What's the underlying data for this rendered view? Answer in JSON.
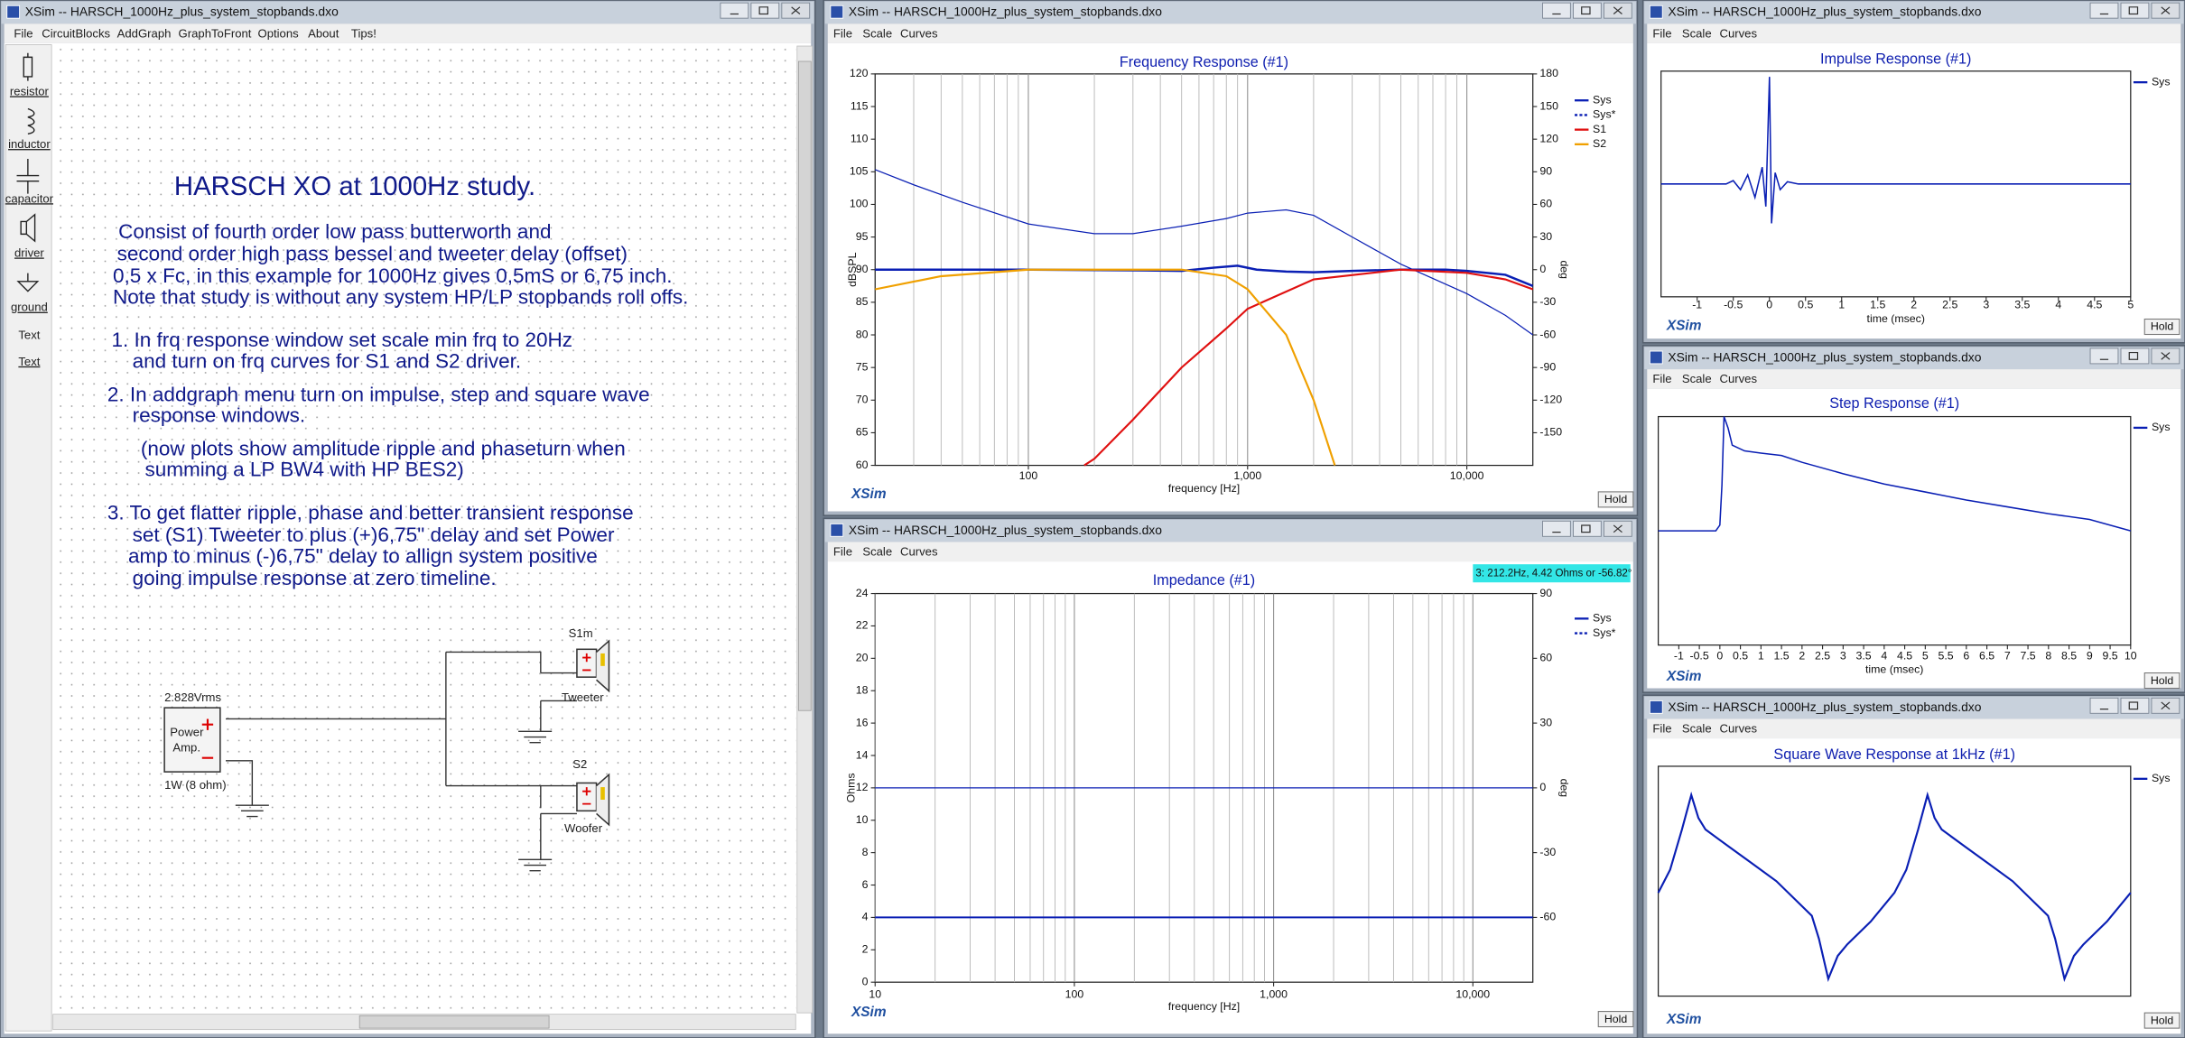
{
  "left_window": {
    "title": "XSim -- HARSCH_1000Hz_plus_system_stopbands.dxo",
    "menu": [
      "File",
      "CircuitBlocks",
      "AddGraph",
      "GraphToFront",
      "Options",
      "About",
      "Tips!"
    ],
    "palette": [
      "resistor",
      "inductor",
      "capacitor",
      "driver",
      "ground",
      "Text",
      "Text"
    ],
    "heading": "HARSCH XO at 1000Hz study.",
    "notes": [
      "Consist of fourth order low pass butterworth and",
      "second order high pass bessel and tweeter delay (offset)",
      "0,5 x Fc, in this example for 1000Hz gives 0,5mS or 6,75 inch.",
      "Note that study is without any system HP/LP stopbands roll offs.",
      "1. In frq response window set scale min frq to 20Hz",
      "and turn on frq curves for S1 and S2 driver.",
      "2. In addgraph menu turn on impulse, step and square wave",
      "response windows.",
      "(now plots show amplitude ripple and phaseturn when",
      "summing a LP BW4 with HP BES2)",
      "3. To get flatter ripple, phase and better transient response",
      "set (S1) Tweeter to plus (+)6,75\" delay and set Power",
      "amp to minus (-)6,75\" delay to allign system positive",
      "going impulse response at zero timeline."
    ],
    "circuit": {
      "source_voltage": "2.828Vrms",
      "source_name": [
        "Power",
        "Amp."
      ],
      "source_power": "1W (8 ohm)",
      "driver1_name": "S1m",
      "driver1_label": "Tweeter",
      "driver2_name": "S2",
      "driver2_label": "Woofer"
    }
  },
  "graphs": [
    {
      "type": "line",
      "window_title": "XSim -- HARSCH_1000Hz_plus_system_stopbands.dxo",
      "menu": [
        "File",
        "Scale",
        "Curves"
      ],
      "title": "Frequency Response (#1)",
      "xlabel": "frequency [Hz]",
      "ylabel": "dBSPL",
      "y2label": "deg",
      "xscale": "log",
      "grid": "x",
      "xlim": [
        20,
        20000
      ],
      "ylim": [
        60,
        120
      ],
      "y2lim": [
        -180,
        180
      ],
      "xticks": [
        100,
        {
          "value": 1000,
          "label": "1,000"
        },
        {
          "value": 10000,
          "label": "10,000"
        }
      ],
      "yticks": [
        60,
        65,
        70,
        75,
        80,
        85,
        90,
        95,
        100,
        105,
        110,
        115,
        120
      ],
      "y2ticks": [
        -150,
        -120,
        -90,
        -60,
        -30,
        0,
        30,
        60,
        90,
        120,
        150,
        180
      ],
      "series": [
        {
          "name": "Sys",
          "color": "#0a1fb4",
          "width": 1.6,
          "x": [
            20,
            100,
            300,
            500,
            700,
            900,
            1100,
            1500,
            2000,
            3000,
            5000,
            8000,
            10000,
            15000,
            20000
          ],
          "values": [
            90,
            90,
            89.9,
            89.8,
            90.3,
            90.6,
            90,
            89.7,
            89.6,
            89.8,
            90,
            90,
            89.8,
            89.2,
            87.5
          ],
          "phase_x": [
            20,
            30,
            50,
            100,
            200,
            300,
            500,
            800,
            1000,
            1500,
            2000,
            3000,
            5000,
            10000,
            15000,
            20000
          ],
          "phase": [
            92,
            78,
            62,
            42,
            33,
            33,
            40,
            47,
            52,
            55,
            50,
            30,
            5,
            -22,
            -42,
            -60
          ]
        },
        {
          "name": "Sys*",
          "color": "#0a1fb4",
          "dash": true,
          "x": [],
          "values": []
        },
        {
          "name": "S1",
          "color": "#e01010",
          "width": 1.4,
          "x": [
            180,
            200,
            300,
            500,
            800,
            1000,
            2000,
            5000,
            10000,
            15000,
            20000
          ],
          "values": [
            60,
            61,
            67,
            75,
            81,
            84,
            88.5,
            90,
            89.5,
            88.5,
            87
          ]
        },
        {
          "name": "S2",
          "color": "#f0a000",
          "width": 1.4,
          "x": [
            20,
            40,
            100,
            500,
            800,
            1000,
            1500,
            2000,
            2500
          ],
          "values": [
            87,
            89,
            90,
            90,
            89,
            87,
            80,
            70,
            60
          ]
        }
      ],
      "watermark": "XSim",
      "button": "Hold"
    },
    {
      "type": "line",
      "window_title": "XSim -- HARSCH_1000Hz_plus_system_stopbands.dxo",
      "menu": [
        "File",
        "Scale",
        "Curves"
      ],
      "title": "Impedance (#1)",
      "xlabel": "frequency [Hz]",
      "ylabel": "Ohms",
      "y2label": "deg",
      "xscale": "log",
      "grid": "x",
      "xlim": [
        10,
        20000
      ],
      "ylim": [
        0,
        24
      ],
      "y2lim": [
        -90,
        90
      ],
      "xticks": [
        10,
        100,
        {
          "value": 1000,
          "label": "1,000"
        },
        {
          "value": 10000,
          "label": "10,000"
        }
      ],
      "yticks": [
        0,
        2,
        4,
        6,
        8,
        10,
        12,
        14,
        16,
        18,
        20,
        22,
        24
      ],
      "y2ticks": [
        -60,
        -30,
        0,
        30,
        60,
        90
      ],
      "series": [
        {
          "name": "Sys",
          "color": "#0a1fb4",
          "width": 1.3,
          "x": [
            10,
            20000
          ],
          "values": [
            4,
            4
          ],
          "phase_x": [
            10,
            20000
          ],
          "phase": [
            0,
            0
          ]
        },
        {
          "name": "Sys*",
          "color": "#0a1fb4",
          "dash": true,
          "x": [],
          "values": []
        }
      ],
      "readout": "3: 212.2Hz, 4.42 Ohms or -56.82°",
      "watermark": "XSim",
      "button": "Hold"
    },
    {
      "type": "line",
      "window_title": "XSim -- HARSCH_1000Hz_plus_system_stopbands.dxo",
      "menu": [
        "File",
        "Scale",
        "Curves"
      ],
      "title": "Impulse Response (#1)",
      "xlabel": "time (msec)",
      "xscale": "linear",
      "xlim": [
        -1.5,
        5
      ],
      "ylim": [
        -1,
        1
      ],
      "xticks": [
        -1,
        -0.5,
        0,
        0.5,
        1,
        1.5,
        2,
        2.5,
        3,
        3.5,
        4,
        4.5,
        5
      ],
      "series": [
        {
          "name": "Sys",
          "color": "#0a1fb4",
          "width": 1,
          "x": [
            -1.5,
            -0.6,
            -0.5,
            -0.4,
            -0.3,
            -0.2,
            -0.1,
            -0.05,
            0,
            0.03,
            0.08,
            0.15,
            0.25,
            0.4,
            5
          ],
          "values": [
            0,
            0,
            0.03,
            -0.05,
            0.08,
            -0.12,
            0.15,
            -0.2,
            0.95,
            -0.35,
            0.1,
            -0.05,
            0.02,
            0,
            0
          ]
        }
      ],
      "watermark": "XSim",
      "button": "Hold"
    },
    {
      "type": "line",
      "window_title": "XSim -- HARSCH_1000Hz_plus_system_stopbands.dxo",
      "menu": [
        "File",
        "Scale",
        "Curves"
      ],
      "title": "Step Response (#1)",
      "xlabel": "time (msec)",
      "xscale": "linear",
      "xlim": [
        -1.5,
        10
      ],
      "ylim": [
        -1,
        1
      ],
      "xticks": [
        -1,
        -0.5,
        0,
        0.5,
        1,
        1.5,
        2,
        2.5,
        3,
        3.5,
        4,
        4.5,
        5,
        5.5,
        6,
        6.5,
        7,
        7.5,
        8,
        8.5,
        9,
        9.5,
        10
      ],
      "series": [
        {
          "name": "Sys",
          "color": "#0a1fb4",
          "width": 1,
          "x": [
            -1.5,
            -0.1,
            0,
            0.05,
            0.1,
            0.2,
            0.3,
            0.6,
            1,
            1.5,
            2,
            3,
            4,
            5,
            6,
            7,
            8,
            9,
            10
          ],
          "values": [
            0,
            0,
            0.05,
            0.4,
            1,
            0.9,
            0.75,
            0.7,
            0.68,
            0.66,
            0.6,
            0.5,
            0.41,
            0.34,
            0.27,
            0.21,
            0.15,
            0.1,
            0
          ]
        }
      ],
      "watermark": "XSim",
      "button": "Hold"
    },
    {
      "type": "line",
      "window_title": "XSim -- HARSCH_1000Hz_plus_system_stopbands.dxo",
      "menu": [
        "File",
        "Scale",
        "Curves"
      ],
      "title": "Square Wave Response at 1kHz (#1)",
      "xscale": "linear",
      "xlim": [
        0,
        2
      ],
      "ylim": [
        -1,
        1
      ],
      "series": [
        {
          "name": "Sys",
          "color": "#0a1fb4",
          "width": 1.4,
          "x": [
            0,
            0.05,
            0.1,
            0.14,
            0.17,
            0.2,
            0.3,
            0.4,
            0.5,
            0.6,
            0.65,
            0.68,
            0.72,
            0.76,
            0.8,
            0.9,
            1,
            1.05,
            1.1,
            1.14,
            1.17,
            1.2,
            1.3,
            1.4,
            1.5,
            1.6,
            1.65,
            1.68,
            1.72,
            1.76,
            1.8,
            1.9,
            2
          ],
          "values": [
            -0.1,
            0.1,
            0.45,
            0.75,
            0.55,
            0.45,
            0.3,
            0.15,
            0,
            -0.2,
            -0.3,
            -0.5,
            -0.85,
            -0.65,
            -0.55,
            -0.35,
            -0.1,
            0.1,
            0.45,
            0.75,
            0.55,
            0.45,
            0.3,
            0.15,
            0,
            -0.2,
            -0.3,
            -0.5,
            -0.85,
            -0.65,
            -0.55,
            -0.35,
            -0.1
          ]
        }
      ],
      "watermark": "XSim",
      "button": "Hold"
    }
  ]
}
